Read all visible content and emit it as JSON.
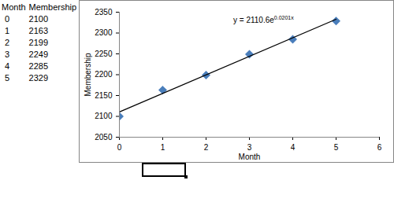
{
  "chart_data": {
    "type": "scatter",
    "x_label": "Month",
    "y_label": "Membership",
    "xlim": [
      0,
      6
    ],
    "ylim": [
      2050,
      2350
    ],
    "xticks": [
      0,
      1,
      2,
      3,
      4,
      5,
      6
    ],
    "yticks": [
      2050,
      2100,
      2150,
      2200,
      2250,
      2300,
      2350
    ],
    "grid": false,
    "series": [
      {
        "name": "Membership",
        "type": "scatter",
        "color": "#4a7ebb",
        "marker": "diamond",
        "x": [
          0,
          1,
          2,
          3,
          4,
          5
        ],
        "values": [
          2100,
          2163,
          2199,
          2249,
          2285,
          2329
        ]
      },
      {
        "type": "line",
        "color": "#000000",
        "line_style": "solid",
        "x": [
          0,
          5
        ],
        "values": [
          2110.6,
          2333
        ]
      }
    ],
    "annotations": [
      {
        "text": "y = 2110.6e",
        "superscript": "0.0201x"
      }
    ]
  }
}
